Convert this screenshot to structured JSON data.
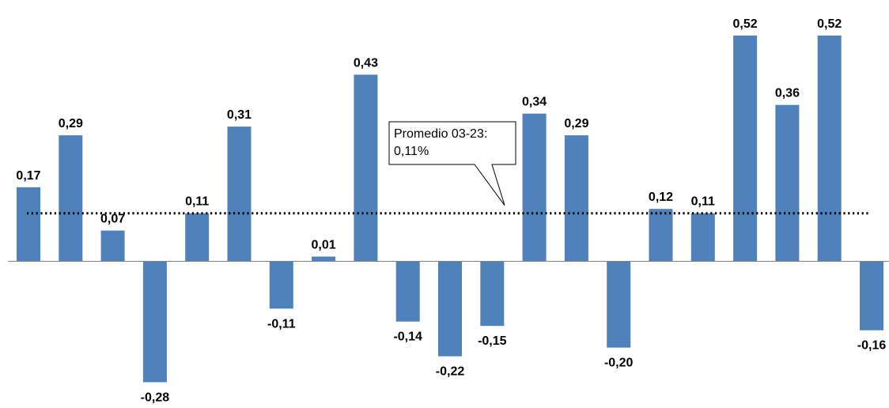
{
  "chart_data": {
    "type": "bar",
    "categories": [],
    "values": [
      0.17,
      0.29,
      0.07,
      -0.28,
      0.11,
      0.31,
      -0.11,
      0.01,
      0.43,
      -0.14,
      -0.22,
      -0.15,
      0.34,
      0.29,
      -0.2,
      0.12,
      0.11,
      0.52,
      0.36,
      0.52,
      -0.16
    ],
    "labels": [
      "0,17",
      "0,29",
      "0,07",
      "-0,28",
      "0,11",
      "0,31",
      "-0,11",
      "0,01",
      "0,43",
      "-0,14",
      "-0,22",
      "-0,15",
      "0,34",
      "0,29",
      "-0,20",
      "0,12",
      "0,11",
      "0,52",
      "0,36",
      "0,52",
      "-0,16"
    ],
    "title": "",
    "xlabel": "",
    "ylabel": "",
    "ylim": [
      -0.3,
      0.55
    ],
    "grid": false,
    "bar_color": "#4f81bd",
    "reference_line": {
      "value": 0.11,
      "style": "dotted",
      "color": "#000000",
      "annotation_line1": "Promedio 03-23:",
      "annotation_line2": "0,11%"
    }
  }
}
